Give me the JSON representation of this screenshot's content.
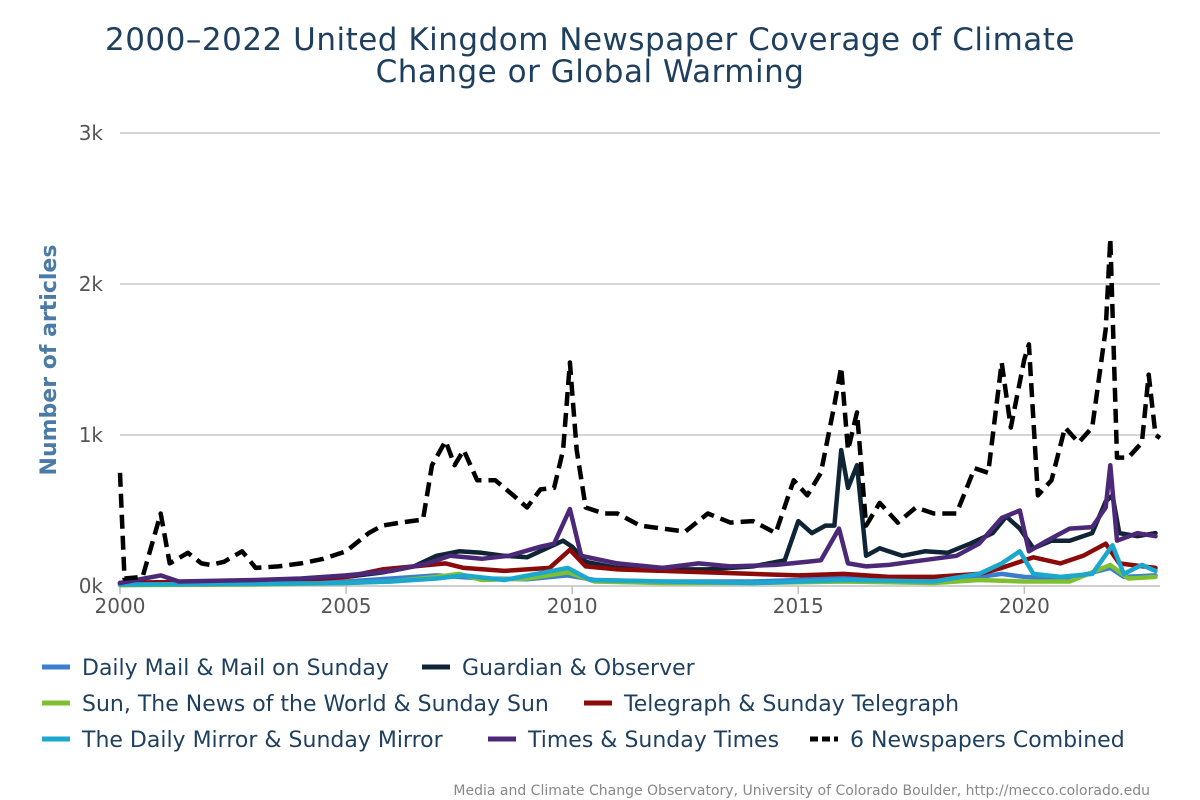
{
  "chart_data": {
    "type": "line",
    "title": "2000–2022 United Kingdom Newspaper Coverage of Climate Change or Global Warming",
    "title_lines": [
      "2000–2022 United Kingdom Newspaper Coverage of Climate",
      "Change or Global Warming"
    ],
    "ylabel": "Number of articles",
    "xlabel": "",
    "credit": "Media and Climate Change Observatory, University of Colorado Boulder, http://mecco.colorado.edu",
    "xlim": [
      2000,
      2023
    ],
    "ylim": [
      0,
      3000
    ],
    "y_ticks": [
      {
        "v": 0,
        "label": "0k"
      },
      {
        "v": 1000,
        "label": "1k"
      },
      {
        "v": 2000,
        "label": "2k"
      },
      {
        "v": 3000,
        "label": "3k"
      }
    ],
    "x_ticks": [
      {
        "v": 2000,
        "label": "2000"
      },
      {
        "v": 2005,
        "label": "2005"
      },
      {
        "v": 2010,
        "label": "2010"
      },
      {
        "v": 2015,
        "label": "2015"
      },
      {
        "v": 2020,
        "label": "2020"
      }
    ],
    "grid": true,
    "legend_position": "bottom",
    "series": [
      {
        "name": "Daily Mail & Mail on Sunday",
        "color": "#3a7fce",
        "dash": false,
        "points": [
          [
            2000,
            10
          ],
          [
            2003,
            15
          ],
          [
            2005,
            30
          ],
          [
            2006,
            50
          ],
          [
            2007,
            70
          ],
          [
            2008,
            50
          ],
          [
            2009,
            45
          ],
          [
            2009.9,
            70
          ],
          [
            2010.5,
            40
          ],
          [
            2012,
            30
          ],
          [
            2014,
            30
          ],
          [
            2015,
            40
          ],
          [
            2016,
            60
          ],
          [
            2017,
            40
          ],
          [
            2018,
            40
          ],
          [
            2019,
            60
          ],
          [
            2019.5,
            80
          ],
          [
            2020,
            60
          ],
          [
            2021,
            50
          ],
          [
            2021.9,
            120
          ],
          [
            2022.2,
            60
          ],
          [
            2022.9,
            70
          ]
        ]
      },
      {
        "name": "Guardian & Observer",
        "color": "#0f2535",
        "dash": false,
        "points": [
          [
            2000,
            20
          ],
          [
            2001,
            25
          ],
          [
            2002,
            30
          ],
          [
            2003,
            35
          ],
          [
            2004,
            45
          ],
          [
            2005,
            60
          ],
          [
            2005.8,
            90
          ],
          [
            2006.5,
            130
          ],
          [
            2007,
            200
          ],
          [
            2007.5,
            230
          ],
          [
            2008,
            220
          ],
          [
            2008.5,
            200
          ],
          [
            2009,
            190
          ],
          [
            2009.8,
            300
          ],
          [
            2010,
            260
          ],
          [
            2010.3,
            160
          ],
          [
            2011,
            120
          ],
          [
            2012,
            110
          ],
          [
            2013,
            110
          ],
          [
            2014,
            130
          ],
          [
            2014.7,
            170
          ],
          [
            2015,
            430
          ],
          [
            2015.3,
            350
          ],
          [
            2015.6,
            400
          ],
          [
            2015.8,
            400
          ],
          [
            2015.95,
            900
          ],
          [
            2016.1,
            650
          ],
          [
            2016.3,
            800
          ],
          [
            2016.5,
            200
          ],
          [
            2016.8,
            250
          ],
          [
            2017.3,
            200
          ],
          [
            2017.8,
            230
          ],
          [
            2018.3,
            220
          ],
          [
            2018.8,
            280
          ],
          [
            2019.3,
            350
          ],
          [
            2019.6,
            460
          ],
          [
            2019.9,
            380
          ],
          [
            2020.2,
            250
          ],
          [
            2020.6,
            300
          ],
          [
            2021,
            300
          ],
          [
            2021.5,
            350
          ],
          [
            2021.8,
            560
          ],
          [
            2021.95,
            600
          ],
          [
            2022.1,
            350
          ],
          [
            2022.5,
            330
          ],
          [
            2022.9,
            350
          ]
        ]
      },
      {
        "name": "Sun, The News of the World & Sunday Sun",
        "color": "#7fc030",
        "dash": false,
        "points": [
          [
            2000,
            5
          ],
          [
            2003,
            10
          ],
          [
            2005,
            20
          ],
          [
            2006,
            30
          ],
          [
            2007,
            60
          ],
          [
            2007.5,
            80
          ],
          [
            2008,
            40
          ],
          [
            2009,
            50
          ],
          [
            2009.9,
            90
          ],
          [
            2010.5,
            30
          ],
          [
            2012,
            20
          ],
          [
            2014,
            20
          ],
          [
            2016,
            30
          ],
          [
            2018,
            20
          ],
          [
            2019,
            40
          ],
          [
            2020,
            30
          ],
          [
            2021,
            30
          ],
          [
            2021.9,
            140
          ],
          [
            2022.3,
            50
          ],
          [
            2022.9,
            60
          ]
        ]
      },
      {
        "name": "Telegraph & Sunday Telegraph",
        "color": "#8b0a0a",
        "dash": false,
        "points": [
          [
            2000,
            20
          ],
          [
            2002,
            30
          ],
          [
            2004,
            40
          ],
          [
            2005,
            60
          ],
          [
            2005.8,
            110
          ],
          [
            2006.5,
            130
          ],
          [
            2007.2,
            150
          ],
          [
            2007.6,
            120
          ],
          [
            2008.5,
            100
          ],
          [
            2009.5,
            120
          ],
          [
            2009.95,
            240
          ],
          [
            2010.3,
            130
          ],
          [
            2011,
            110
          ],
          [
            2012,
            100
          ],
          [
            2013,
            90
          ],
          [
            2014,
            80
          ],
          [
            2015,
            70
          ],
          [
            2016,
            80
          ],
          [
            2017,
            60
          ],
          [
            2018,
            60
          ],
          [
            2019,
            80
          ],
          [
            2019.5,
            120
          ],
          [
            2020.2,
            190
          ],
          [
            2020.8,
            150
          ],
          [
            2021.3,
            200
          ],
          [
            2021.8,
            280
          ],
          [
            2022.1,
            150
          ],
          [
            2022.9,
            120
          ]
        ]
      },
      {
        "name": "The Daily Mirror & Sunday Mirror",
        "color": "#1ca7cf",
        "dash": false,
        "points": [
          [
            2000,
            10
          ],
          [
            2003,
            15
          ],
          [
            2005,
            20
          ],
          [
            2006,
            30
          ],
          [
            2007,
            50
          ],
          [
            2007.6,
            70
          ],
          [
            2008.5,
            40
          ],
          [
            2009.9,
            120
          ],
          [
            2010.4,
            40
          ],
          [
            2012,
            30
          ],
          [
            2014,
            20
          ],
          [
            2016,
            40
          ],
          [
            2018,
            30
          ],
          [
            2019,
            80
          ],
          [
            2019.5,
            150
          ],
          [
            2019.9,
            230
          ],
          [
            2020.2,
            80
          ],
          [
            2020.8,
            60
          ],
          [
            2021.5,
            80
          ],
          [
            2021.95,
            270
          ],
          [
            2022.2,
            80
          ],
          [
            2022.6,
            140
          ],
          [
            2022.9,
            100
          ]
        ]
      },
      {
        "name": "Times & Sunday Times",
        "color": "#4b2878",
        "dash": false,
        "points": [
          [
            2000,
            20
          ],
          [
            2000.9,
            70
          ],
          [
            2001.3,
            30
          ],
          [
            2003,
            40
          ],
          [
            2004,
            50
          ],
          [
            2005,
            70
          ],
          [
            2006,
            100
          ],
          [
            2006.8,
            150
          ],
          [
            2007.3,
            200
          ],
          [
            2008,
            180
          ],
          [
            2008.6,
            200
          ],
          [
            2009.3,
            260
          ],
          [
            2009.6,
            280
          ],
          [
            2009.95,
            510
          ],
          [
            2010.2,
            200
          ],
          [
            2011,
            150
          ],
          [
            2012,
            120
          ],
          [
            2012.8,
            150
          ],
          [
            2013.5,
            130
          ],
          [
            2014.5,
            140
          ],
          [
            2015.2,
            160
          ],
          [
            2015.5,
            170
          ],
          [
            2015.9,
            380
          ],
          [
            2016.1,
            150
          ],
          [
            2016.5,
            130
          ],
          [
            2017,
            140
          ],
          [
            2017.5,
            160
          ],
          [
            2018,
            180
          ],
          [
            2018.5,
            200
          ],
          [
            2019,
            280
          ],
          [
            2019.5,
            450
          ],
          [
            2019.9,
            500
          ],
          [
            2020.1,
            230
          ],
          [
            2020.5,
            300
          ],
          [
            2021,
            380
          ],
          [
            2021.5,
            390
          ],
          [
            2021.8,
            520
          ],
          [
            2021.9,
            800
          ],
          [
            2022.05,
            300
          ],
          [
            2022.5,
            350
          ],
          [
            2022.9,
            330
          ]
        ]
      },
      {
        "name": "6 Newspapers Combined",
        "color": "#000000",
        "dash": true,
        "points": [
          [
            2000,
            750
          ],
          [
            2000.1,
            50
          ],
          [
            2000.5,
            60
          ],
          [
            2000.9,
            480
          ],
          [
            2001.1,
            150
          ],
          [
            2001.5,
            220
          ],
          [
            2001.8,
            150
          ],
          [
            2002,
            140
          ],
          [
            2002.3,
            160
          ],
          [
            2002.7,
            230
          ],
          [
            2003,
            120
          ],
          [
            2003.5,
            130
          ],
          [
            2004,
            150
          ],
          [
            2004.5,
            180
          ],
          [
            2005,
            230
          ],
          [
            2005.5,
            350
          ],
          [
            2005.8,
            400
          ],
          [
            2006.2,
            420
          ],
          [
            2006.7,
            440
          ],
          [
            2006.9,
            800
          ],
          [
            2007.2,
            960
          ],
          [
            2007.4,
            800
          ],
          [
            2007.6,
            900
          ],
          [
            2007.9,
            700
          ],
          [
            2008.3,
            700
          ],
          [
            2008.7,
            600
          ],
          [
            2009,
            520
          ],
          [
            2009.3,
            640
          ],
          [
            2009.6,
            650
          ],
          [
            2009.8,
            900
          ],
          [
            2009.95,
            1480
          ],
          [
            2010.1,
            900
          ],
          [
            2010.3,
            520
          ],
          [
            2010.7,
            480
          ],
          [
            2011,
            480
          ],
          [
            2011.5,
            400
          ],
          [
            2012,
            380
          ],
          [
            2012.5,
            360
          ],
          [
            2013,
            480
          ],
          [
            2013.5,
            420
          ],
          [
            2014,
            430
          ],
          [
            2014.5,
            350
          ],
          [
            2014.9,
            700
          ],
          [
            2015.2,
            600
          ],
          [
            2015.5,
            750
          ],
          [
            2015.8,
            1200
          ],
          [
            2015.95,
            1450
          ],
          [
            2016.1,
            900
          ],
          [
            2016.3,
            1150
          ],
          [
            2016.5,
            400
          ],
          [
            2016.8,
            550
          ],
          [
            2017.2,
            420
          ],
          [
            2017.6,
            520
          ],
          [
            2018,
            480
          ],
          [
            2018.5,
            480
          ],
          [
            2018.9,
            780
          ],
          [
            2019.2,
            750
          ],
          [
            2019.5,
            1480
          ],
          [
            2019.7,
            1050
          ],
          [
            2020,
            1500
          ],
          [
            2020.1,
            1600
          ],
          [
            2020.3,
            600
          ],
          [
            2020.6,
            700
          ],
          [
            2020.9,
            1050
          ],
          [
            2021.2,
            950
          ],
          [
            2021.5,
            1050
          ],
          [
            2021.8,
            1700
          ],
          [
            2021.9,
            2300
          ],
          [
            2022.05,
            850
          ],
          [
            2022.3,
            850
          ],
          [
            2022.6,
            950
          ],
          [
            2022.75,
            1400
          ],
          [
            2022.9,
            1000
          ],
          [
            2023,
            980
          ]
        ]
      }
    ]
  }
}
